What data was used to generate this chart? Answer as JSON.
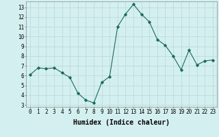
{
  "x": [
    0,
    1,
    2,
    3,
    4,
    5,
    6,
    7,
    8,
    9,
    10,
    11,
    12,
    13,
    14,
    15,
    16,
    17,
    18,
    19,
    20,
    21,
    22,
    23
  ],
  "y": [
    6.1,
    6.8,
    6.7,
    6.8,
    6.3,
    5.8,
    4.2,
    3.5,
    3.2,
    5.3,
    5.9,
    11.0,
    12.3,
    13.3,
    12.3,
    11.5,
    9.7,
    9.1,
    8.0,
    6.6,
    8.6,
    7.1,
    7.5,
    7.6
  ],
  "line_color": "#1a6b5a",
  "marker": "D",
  "marker_size": 1.8,
  "linewidth": 0.8,
  "bg_color": "#d4efef",
  "grid_color": "#b8d8d8",
  "xlabel": "Humidex (Indice chaleur)",
  "xlabel_fontsize": 7,
  "xlabel_weight": "bold",
  "xlim": [
    -0.5,
    23.5
  ],
  "ylim": [
    2.8,
    13.6
  ],
  "yticks": [
    3,
    4,
    5,
    6,
    7,
    8,
    9,
    10,
    11,
    12,
    13
  ],
  "xticks": [
    0,
    1,
    2,
    3,
    4,
    5,
    6,
    7,
    8,
    9,
    10,
    11,
    12,
    13,
    14,
    15,
    16,
    17,
    18,
    19,
    20,
    21,
    22,
    23
  ],
  "tick_fontsize": 5.5,
  "figure_bg": "#d4efef"
}
